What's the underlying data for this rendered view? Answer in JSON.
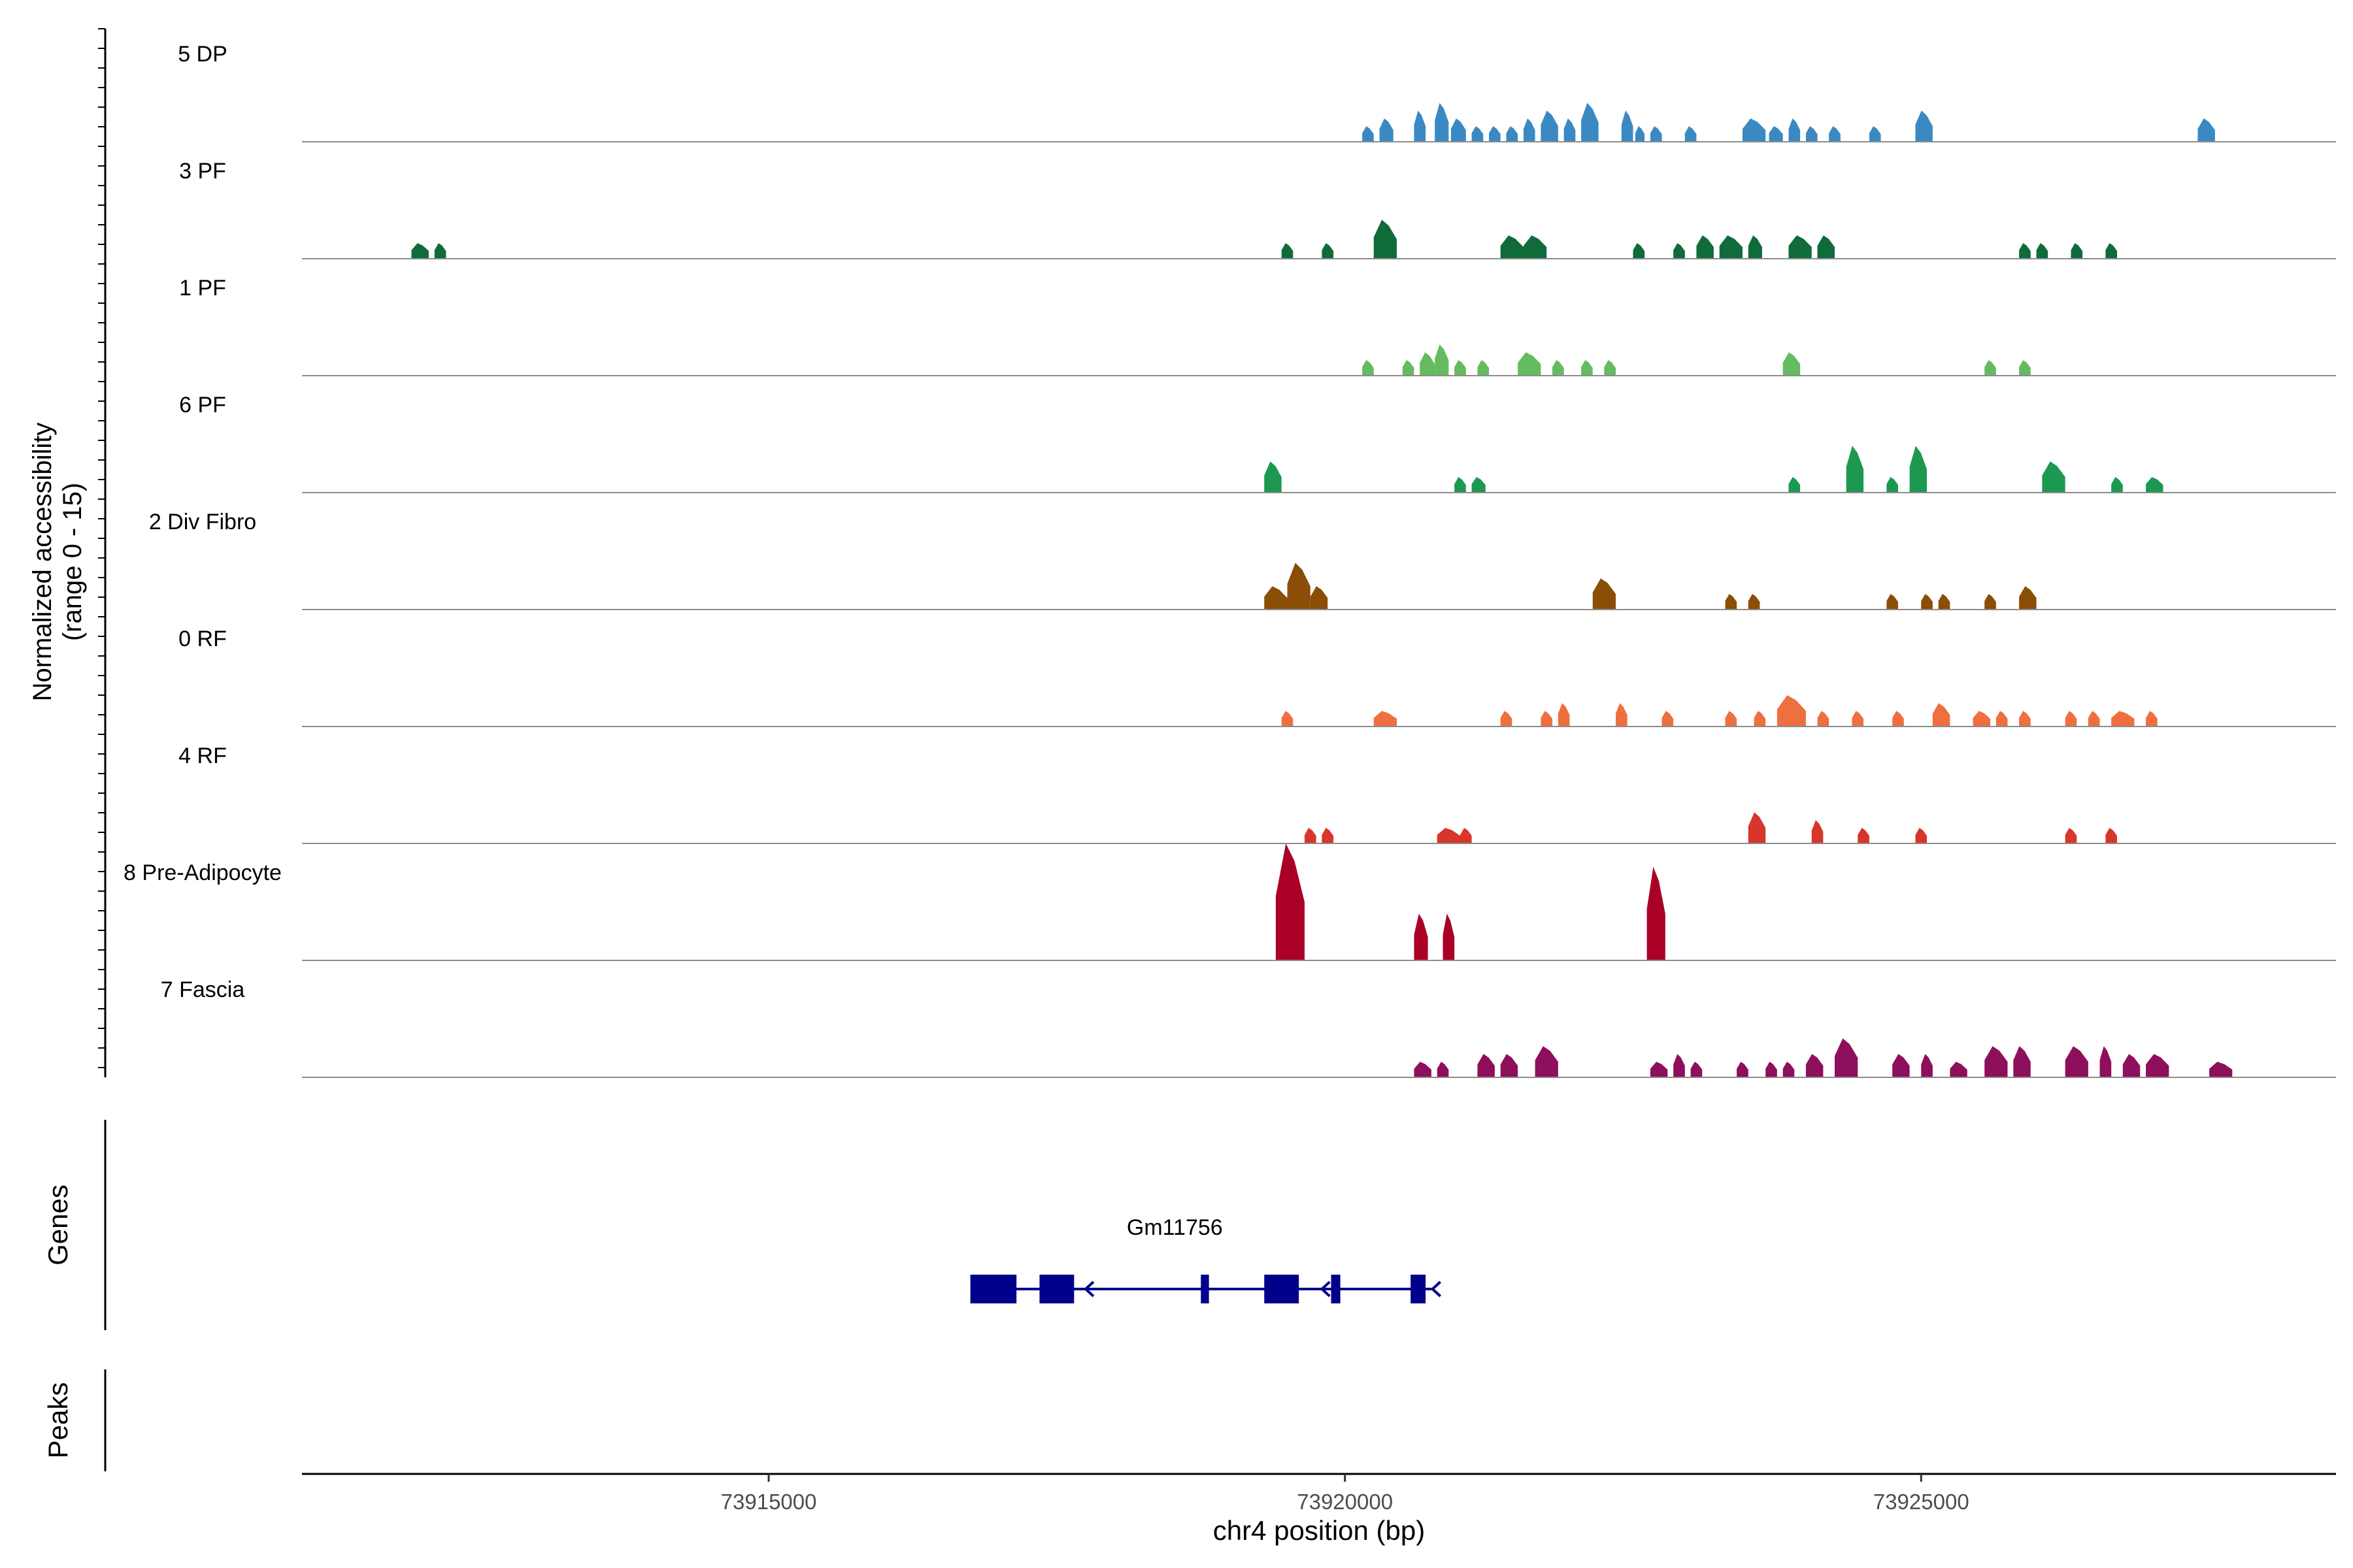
{
  "chart_data": {
    "type": "area",
    "ylabel": "Normalized accessibility\n(range 0 - 15)",
    "ylim": [
      0,
      15
    ],
    "xlabel": "chr4 position (bp)",
    "xlim": [
      73910950,
      73928600
    ],
    "xticks": [
      73915000,
      73920000,
      73925000
    ],
    "tick_labels": [
      "73915000",
      "73920000",
      "73925000"
    ],
    "series": [
      {
        "name": "5 DP",
        "color": "#3a89c2",
        "peaks": [
          [
            73920150,
            73920250,
            2
          ],
          [
            73920300,
            73920420,
            3
          ],
          [
            73920600,
            73920700,
            4
          ],
          [
            73920780,
            73920900,
            5
          ],
          [
            73920920,
            73921050,
            3
          ],
          [
            73921100,
            73921200,
            2
          ],
          [
            73921250,
            73921350,
            2
          ],
          [
            73921400,
            73921500,
            2
          ],
          [
            73921550,
            73921650,
            3
          ],
          [
            73921700,
            73921850,
            4
          ],
          [
            73921900,
            73922000,
            3
          ],
          [
            73922050,
            73922200,
            5
          ],
          [
            73922400,
            73922500,
            4
          ],
          [
            73922520,
            73922600,
            2
          ],
          [
            73922650,
            73922750,
            2
          ],
          [
            73922950,
            73923050,
            2
          ],
          [
            73923450,
            73923650,
            3
          ],
          [
            73923680,
            73923800,
            2
          ],
          [
            73923850,
            73923950,
            3
          ],
          [
            73924000,
            73924100,
            2
          ],
          [
            73924200,
            73924300,
            2
          ],
          [
            73924550,
            73924650,
            2
          ],
          [
            73924950,
            73925100,
            4
          ],
          [
            73927400,
            73927550,
            3
          ]
        ]
      },
      {
        "name": "3 PF",
        "color": "#0f6b3a",
        "peaks": [
          [
            73911900,
            73912050,
            2
          ],
          [
            73912100,
            73912200,
            2
          ],
          [
            73919450,
            73919550,
            2
          ],
          [
            73919800,
            73919900,
            2
          ],
          [
            73920250,
            73920450,
            5
          ],
          [
            73921350,
            73921550,
            3
          ],
          [
            73921550,
            73921750,
            3
          ],
          [
            73922500,
            73922600,
            2
          ],
          [
            73922850,
            73922950,
            2
          ],
          [
            73923050,
            73923200,
            3
          ],
          [
            73923250,
            73923450,
            3
          ],
          [
            73923500,
            73923620,
            3
          ],
          [
            73923850,
            73924050,
            3
          ],
          [
            73924100,
            73924250,
            3
          ],
          [
            73925850,
            73925950,
            2
          ],
          [
            73926000,
            73926100,
            2
          ],
          [
            73926300,
            73926400,
            2
          ],
          [
            73926600,
            73926700,
            2
          ]
        ]
      },
      {
        "name": "1 PF",
        "color": "#65bb5f",
        "peaks": [
          [
            73920150,
            73920250,
            2
          ],
          [
            73920500,
            73920600,
            2
          ],
          [
            73920650,
            73920780,
            3
          ],
          [
            73920780,
            73920900,
            4
          ],
          [
            73920950,
            73921050,
            2
          ],
          [
            73921150,
            73921250,
            2
          ],
          [
            73921500,
            73921700,
            3
          ],
          [
            73921800,
            73921900,
            2
          ],
          [
            73922050,
            73922150,
            2
          ],
          [
            73922250,
            73922350,
            2
          ],
          [
            73923800,
            73923950,
            3
          ],
          [
            73925550,
            73925650,
            2
          ],
          [
            73925850,
            73925950,
            2
          ]
        ]
      },
      {
        "name": "6 PF",
        "color": "#1d9850",
        "peaks": [
          [
            73919300,
            73919450,
            4
          ],
          [
            73920950,
            73921050,
            2
          ],
          [
            73921100,
            73921220,
            2
          ],
          [
            73923850,
            73923950,
            2
          ],
          [
            73924350,
            73924500,
            6
          ],
          [
            73924700,
            73924800,
            2
          ],
          [
            73924900,
            73925050,
            6
          ],
          [
            73926050,
            73926250,
            4
          ],
          [
            73926650,
            73926750,
            2
          ],
          [
            73926950,
            73927100,
            2
          ]
        ]
      },
      {
        "name": "2 Div Fibro",
        "color": "#8b4e06",
        "peaks": [
          [
            73919300,
            73919500,
            3
          ],
          [
            73919500,
            73919700,
            6
          ],
          [
            73919700,
            73919850,
            3
          ],
          [
            73922150,
            73922350,
            4
          ],
          [
            73923300,
            73923400,
            2
          ],
          [
            73923500,
            73923600,
            2
          ],
          [
            73924700,
            73924800,
            2
          ],
          [
            73925000,
            73925100,
            2
          ],
          [
            73925150,
            73925250,
            2
          ],
          [
            73925550,
            73925650,
            2
          ],
          [
            73925850,
            73926000,
            3
          ]
        ]
      },
      {
        "name": "0 RF",
        "color": "#ee6f3f",
        "peaks": [
          [
            73919450,
            73919550,
            2
          ],
          [
            73920250,
            73920450,
            2
          ],
          [
            73921350,
            73921450,
            2
          ],
          [
            73921700,
            73921800,
            2
          ],
          [
            73921850,
            73921950,
            3
          ],
          [
            73922350,
            73922450,
            3
          ],
          [
            73922750,
            73922850,
            2
          ],
          [
            73923300,
            73923400,
            2
          ],
          [
            73923550,
            73923650,
            2
          ],
          [
            73923750,
            73924000,
            4
          ],
          [
            73924100,
            73924200,
            2
          ],
          [
            73924400,
            73924500,
            2
          ],
          [
            73924750,
            73924850,
            2
          ],
          [
            73925100,
            73925250,
            3
          ],
          [
            73925450,
            73925600,
            2
          ],
          [
            73925650,
            73925750,
            2
          ],
          [
            73925850,
            73925950,
            2
          ],
          [
            73926250,
            73926350,
            2
          ],
          [
            73926450,
            73926550,
            2
          ],
          [
            73926650,
            73926850,
            2
          ],
          [
            73926950,
            73927050,
            2
          ]
        ]
      },
      {
        "name": "4 RF",
        "color": "#d7362b",
        "peaks": [
          [
            73919650,
            73919750,
            2
          ],
          [
            73919800,
            73919900,
            2
          ],
          [
            73920800,
            73921000,
            2
          ],
          [
            73921000,
            73921100,
            2
          ],
          [
            73923500,
            73923650,
            4
          ],
          [
            73924050,
            73924150,
            3
          ],
          [
            73924450,
            73924550,
            2
          ],
          [
            73924950,
            73925050,
            2
          ],
          [
            73926250,
            73926350,
            2
          ],
          [
            73926600,
            73926700,
            2
          ]
        ]
      },
      {
        "name": "8 Pre-Adipocyte",
        "color": "#aa0026",
        "peaks": [
          [
            73919400,
            73919650,
            15
          ],
          [
            73920600,
            73920720,
            6
          ],
          [
            73920850,
            73920950,
            6
          ],
          [
            73922620,
            73922780,
            12
          ]
        ]
      },
      {
        "name": "7 Fascia",
        "color": "#8e0f5b",
        "peaks": [
          [
            73920600,
            73920750,
            2
          ],
          [
            73920800,
            73920900,
            2
          ],
          [
            73921150,
            73921300,
            3
          ],
          [
            73921350,
            73921500,
            3
          ],
          [
            73921650,
            73921850,
            4
          ],
          [
            73922650,
            73922800,
            2
          ],
          [
            73922850,
            73922950,
            3
          ],
          [
            73923000,
            73923100,
            2
          ],
          [
            73923400,
            73923500,
            2
          ],
          [
            73923650,
            73923750,
            2
          ],
          [
            73923800,
            73923900,
            2
          ],
          [
            73924000,
            73924150,
            3
          ],
          [
            73924250,
            73924450,
            5
          ],
          [
            73924750,
            73924900,
            3
          ],
          [
            73925000,
            73925100,
            3
          ],
          [
            73925250,
            73925400,
            2
          ],
          [
            73925550,
            73925750,
            4
          ],
          [
            73925800,
            73925950,
            4
          ],
          [
            73926250,
            73926450,
            4
          ],
          [
            73926550,
            73926650,
            4
          ],
          [
            73926750,
            73926900,
            3
          ],
          [
            73926950,
            73927150,
            3
          ],
          [
            73927500,
            73927700,
            2
          ]
        ]
      }
    ],
    "genes_label": "Genes",
    "peaks_label": "Peaks",
    "gene": {
      "name": "Gm11756",
      "color": "#00008b",
      "start": 73916750,
      "end": 73920750,
      "strand": "-",
      "exons": [
        [
          73916750,
          73917150
        ],
        [
          73917350,
          73917650
        ],
        [
          73918750,
          73918820
        ],
        [
          73919300,
          73919600
        ],
        [
          73919880,
          73919960
        ],
        [
          73920570,
          73920700
        ]
      ]
    }
  }
}
